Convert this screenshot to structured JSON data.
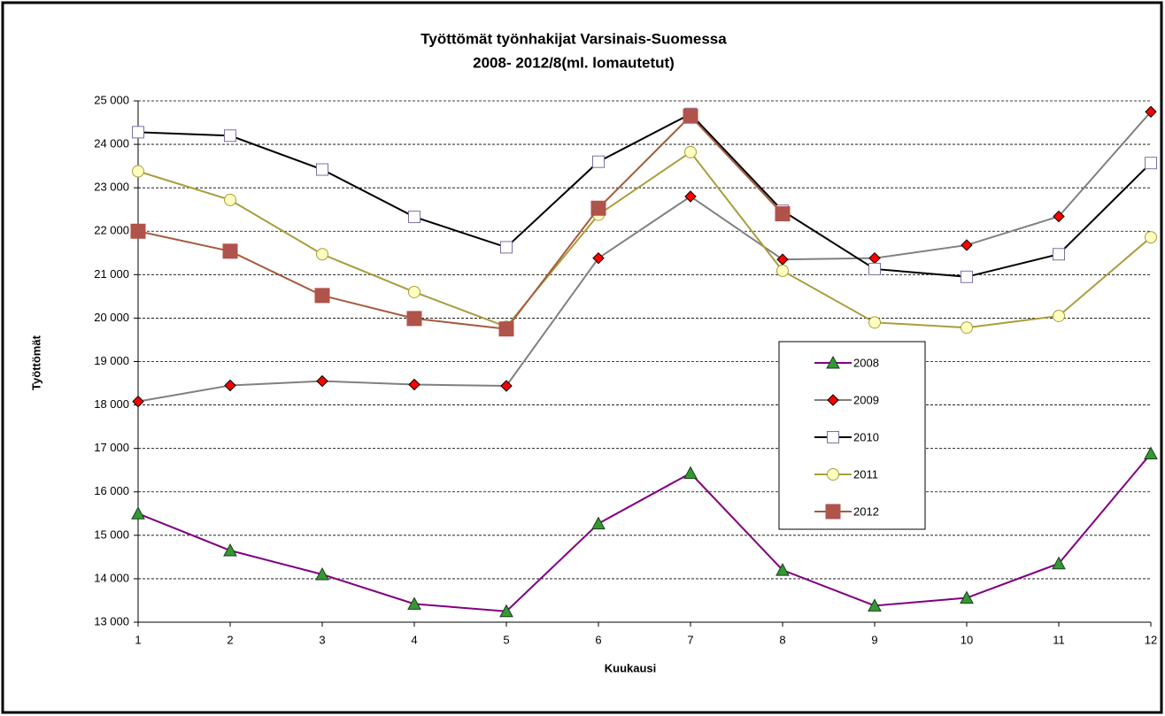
{
  "chart_data": {
    "type": "line",
    "title": "Työttömät työnhakijat  Varsinais-Suomessa",
    "subtitle": "2008- 2012/8(ml.  lomautetut)",
    "xlabel": "Kuukausi",
    "ylabel": "Työttömät",
    "x": [
      1,
      2,
      3,
      4,
      5,
      6,
      7,
      8,
      9,
      10,
      11,
      12
    ],
    "xlim": [
      1,
      12
    ],
    "xticks": [
      1,
      2,
      3,
      4,
      5,
      6,
      7,
      8,
      9,
      10,
      11,
      12
    ],
    "ylim": [
      13000,
      25000
    ],
    "yticks": [
      {
        "value": 13000,
        "label": "13 000"
      },
      {
        "value": 14000,
        "label": "14 000"
      },
      {
        "value": 15000,
        "label": "15 000"
      },
      {
        "value": 16000,
        "label": "16 000"
      },
      {
        "value": 17000,
        "label": "17 000"
      },
      {
        "value": 18000,
        "label": "18 000"
      },
      {
        "value": 19000,
        "label": "19 000"
      },
      {
        "value": 20000,
        "label": "20 000"
      },
      {
        "value": 21000,
        "label": "21 000"
      },
      {
        "value": 22000,
        "label": "22 000"
      },
      {
        "value": 23000,
        "label": "23 000"
      },
      {
        "value": 24000,
        "label": "24 000"
      },
      {
        "value": 25000,
        "label": "25 000"
      }
    ],
    "grid": true,
    "series": [
      {
        "name": "2008",
        "color": "#800080",
        "marker": "triangle",
        "marker_color": "#339933",
        "values": [
          15500,
          14650,
          14100,
          13420,
          13250,
          15270,
          16430,
          14200,
          13380,
          13560,
          14350,
          16880
        ]
      },
      {
        "name": "2009",
        "color": "#808080",
        "marker": "diamond",
        "marker_color": "#ff0000",
        "values": [
          18080,
          18450,
          18550,
          18470,
          18440,
          21380,
          22800,
          21350,
          21380,
          21680,
          22340,
          24750
        ]
      },
      {
        "name": "2010",
        "color": "#000000",
        "marker": "square",
        "marker_color": "#ffffff",
        "values": [
          24280,
          24200,
          23420,
          22330,
          21630,
          23600,
          24700,
          22470,
          21130,
          20950,
          21470,
          23570
        ]
      },
      {
        "name": "2011",
        "color": "#a89e3c",
        "marker": "circle",
        "marker_color": "#ffffc0",
        "values": [
          23380,
          22720,
          21470,
          20600,
          19800,
          22380,
          23820,
          21090,
          19900,
          19780,
          20050,
          21860
        ]
      },
      {
        "name": "2012",
        "color": "#a55b3f",
        "marker": "square",
        "marker_color": "#b0534a",
        "values": [
          22000,
          21540,
          20520,
          19990,
          19750,
          22530,
          24650,
          22400,
          null,
          null,
          null,
          null
        ]
      }
    ]
  }
}
